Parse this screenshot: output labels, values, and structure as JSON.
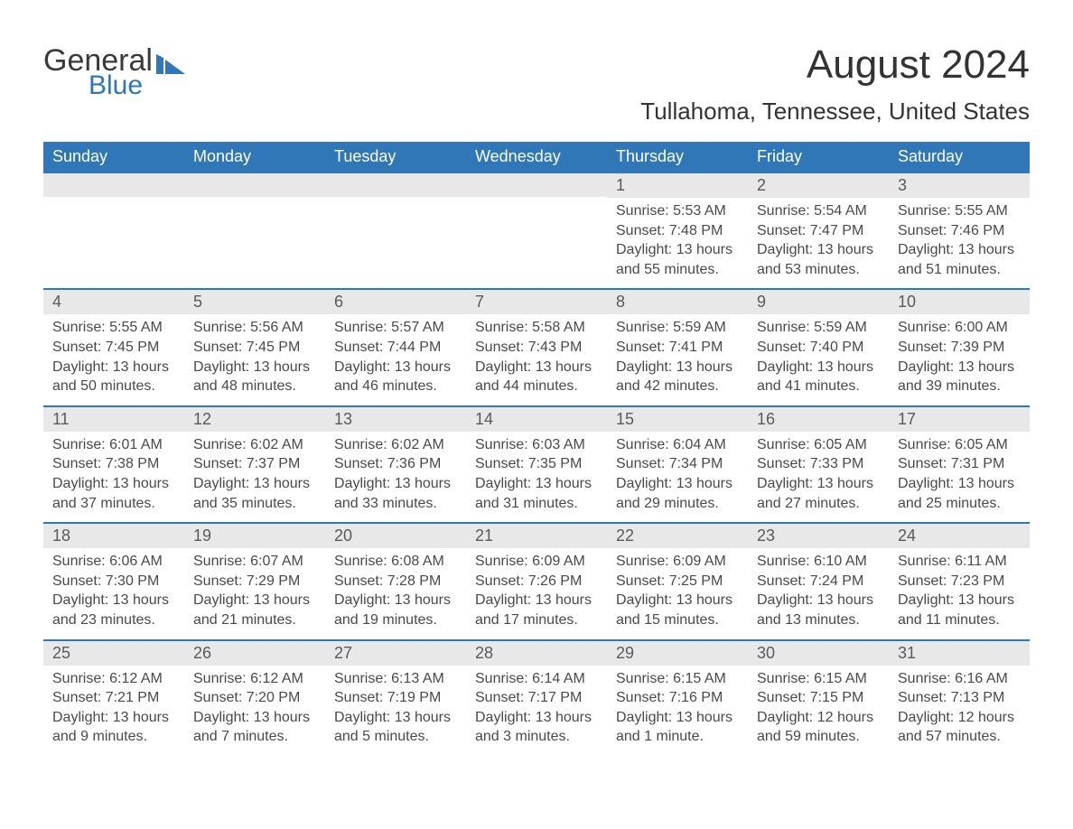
{
  "logo": {
    "top": "General",
    "bottom": "Blue",
    "icon_color": "#2f77b6"
  },
  "header": {
    "month_title": "August 2024",
    "location": "Tullahoma, Tennessee, United States"
  },
  "colors": {
    "header_bg": "#2f77b6",
    "header_text": "#ffffff",
    "day_number_bg": "#e8e8e8",
    "day_number_text": "#5a5a5a",
    "border_top": "#2f77b6",
    "body_text": "#4a4a4a",
    "page_bg": "#ffffff"
  },
  "typography": {
    "month_title_fontsize": 44,
    "location_fontsize": 26,
    "weekday_fontsize": 18,
    "daynum_fontsize": 18,
    "detail_fontsize": 16,
    "font_family": "Arial"
  },
  "columns": [
    "Sunday",
    "Monday",
    "Tuesday",
    "Wednesday",
    "Thursday",
    "Friday",
    "Saturday"
  ],
  "weeks": [
    [
      null,
      null,
      null,
      null,
      {
        "day": "1",
        "sunrise": "Sunrise: 5:53 AM",
        "sunset": "Sunset: 7:48 PM",
        "daylight": "Daylight: 13 hours and 55 minutes."
      },
      {
        "day": "2",
        "sunrise": "Sunrise: 5:54 AM",
        "sunset": "Sunset: 7:47 PM",
        "daylight": "Daylight: 13 hours and 53 minutes."
      },
      {
        "day": "3",
        "sunrise": "Sunrise: 5:55 AM",
        "sunset": "Sunset: 7:46 PM",
        "daylight": "Daylight: 13 hours and 51 minutes."
      }
    ],
    [
      {
        "day": "4",
        "sunrise": "Sunrise: 5:55 AM",
        "sunset": "Sunset: 7:45 PM",
        "daylight": "Daylight: 13 hours and 50 minutes."
      },
      {
        "day": "5",
        "sunrise": "Sunrise: 5:56 AM",
        "sunset": "Sunset: 7:45 PM",
        "daylight": "Daylight: 13 hours and 48 minutes."
      },
      {
        "day": "6",
        "sunrise": "Sunrise: 5:57 AM",
        "sunset": "Sunset: 7:44 PM",
        "daylight": "Daylight: 13 hours and 46 minutes."
      },
      {
        "day": "7",
        "sunrise": "Sunrise: 5:58 AM",
        "sunset": "Sunset: 7:43 PM",
        "daylight": "Daylight: 13 hours and 44 minutes."
      },
      {
        "day": "8",
        "sunrise": "Sunrise: 5:59 AM",
        "sunset": "Sunset: 7:41 PM",
        "daylight": "Daylight: 13 hours and 42 minutes."
      },
      {
        "day": "9",
        "sunrise": "Sunrise: 5:59 AM",
        "sunset": "Sunset: 7:40 PM",
        "daylight": "Daylight: 13 hours and 41 minutes."
      },
      {
        "day": "10",
        "sunrise": "Sunrise: 6:00 AM",
        "sunset": "Sunset: 7:39 PM",
        "daylight": "Daylight: 13 hours and 39 minutes."
      }
    ],
    [
      {
        "day": "11",
        "sunrise": "Sunrise: 6:01 AM",
        "sunset": "Sunset: 7:38 PM",
        "daylight": "Daylight: 13 hours and 37 minutes."
      },
      {
        "day": "12",
        "sunrise": "Sunrise: 6:02 AM",
        "sunset": "Sunset: 7:37 PM",
        "daylight": "Daylight: 13 hours and 35 minutes."
      },
      {
        "day": "13",
        "sunrise": "Sunrise: 6:02 AM",
        "sunset": "Sunset: 7:36 PM",
        "daylight": "Daylight: 13 hours and 33 minutes."
      },
      {
        "day": "14",
        "sunrise": "Sunrise: 6:03 AM",
        "sunset": "Sunset: 7:35 PM",
        "daylight": "Daylight: 13 hours and 31 minutes."
      },
      {
        "day": "15",
        "sunrise": "Sunrise: 6:04 AM",
        "sunset": "Sunset: 7:34 PM",
        "daylight": "Daylight: 13 hours and 29 minutes."
      },
      {
        "day": "16",
        "sunrise": "Sunrise: 6:05 AM",
        "sunset": "Sunset: 7:33 PM",
        "daylight": "Daylight: 13 hours and 27 minutes."
      },
      {
        "day": "17",
        "sunrise": "Sunrise: 6:05 AM",
        "sunset": "Sunset: 7:31 PM",
        "daylight": "Daylight: 13 hours and 25 minutes."
      }
    ],
    [
      {
        "day": "18",
        "sunrise": "Sunrise: 6:06 AM",
        "sunset": "Sunset: 7:30 PM",
        "daylight": "Daylight: 13 hours and 23 minutes."
      },
      {
        "day": "19",
        "sunrise": "Sunrise: 6:07 AM",
        "sunset": "Sunset: 7:29 PM",
        "daylight": "Daylight: 13 hours and 21 minutes."
      },
      {
        "day": "20",
        "sunrise": "Sunrise: 6:08 AM",
        "sunset": "Sunset: 7:28 PM",
        "daylight": "Daylight: 13 hours and 19 minutes."
      },
      {
        "day": "21",
        "sunrise": "Sunrise: 6:09 AM",
        "sunset": "Sunset: 7:26 PM",
        "daylight": "Daylight: 13 hours and 17 minutes."
      },
      {
        "day": "22",
        "sunrise": "Sunrise: 6:09 AM",
        "sunset": "Sunset: 7:25 PM",
        "daylight": "Daylight: 13 hours and 15 minutes."
      },
      {
        "day": "23",
        "sunrise": "Sunrise: 6:10 AM",
        "sunset": "Sunset: 7:24 PM",
        "daylight": "Daylight: 13 hours and 13 minutes."
      },
      {
        "day": "24",
        "sunrise": "Sunrise: 6:11 AM",
        "sunset": "Sunset: 7:23 PM",
        "daylight": "Daylight: 13 hours and 11 minutes."
      }
    ],
    [
      {
        "day": "25",
        "sunrise": "Sunrise: 6:12 AM",
        "sunset": "Sunset: 7:21 PM",
        "daylight": "Daylight: 13 hours and 9 minutes."
      },
      {
        "day": "26",
        "sunrise": "Sunrise: 6:12 AM",
        "sunset": "Sunset: 7:20 PM",
        "daylight": "Daylight: 13 hours and 7 minutes."
      },
      {
        "day": "27",
        "sunrise": "Sunrise: 6:13 AM",
        "sunset": "Sunset: 7:19 PM",
        "daylight": "Daylight: 13 hours and 5 minutes."
      },
      {
        "day": "28",
        "sunrise": "Sunrise: 6:14 AM",
        "sunset": "Sunset: 7:17 PM",
        "daylight": "Daylight: 13 hours and 3 minutes."
      },
      {
        "day": "29",
        "sunrise": "Sunrise: 6:15 AM",
        "sunset": "Sunset: 7:16 PM",
        "daylight": "Daylight: 13 hours and 1 minute."
      },
      {
        "day": "30",
        "sunrise": "Sunrise: 6:15 AM",
        "sunset": "Sunset: 7:15 PM",
        "daylight": "Daylight: 12 hours and 59 minutes."
      },
      {
        "day": "31",
        "sunrise": "Sunrise: 6:16 AM",
        "sunset": "Sunset: 7:13 PM",
        "daylight": "Daylight: 12 hours and 57 minutes."
      }
    ]
  ]
}
